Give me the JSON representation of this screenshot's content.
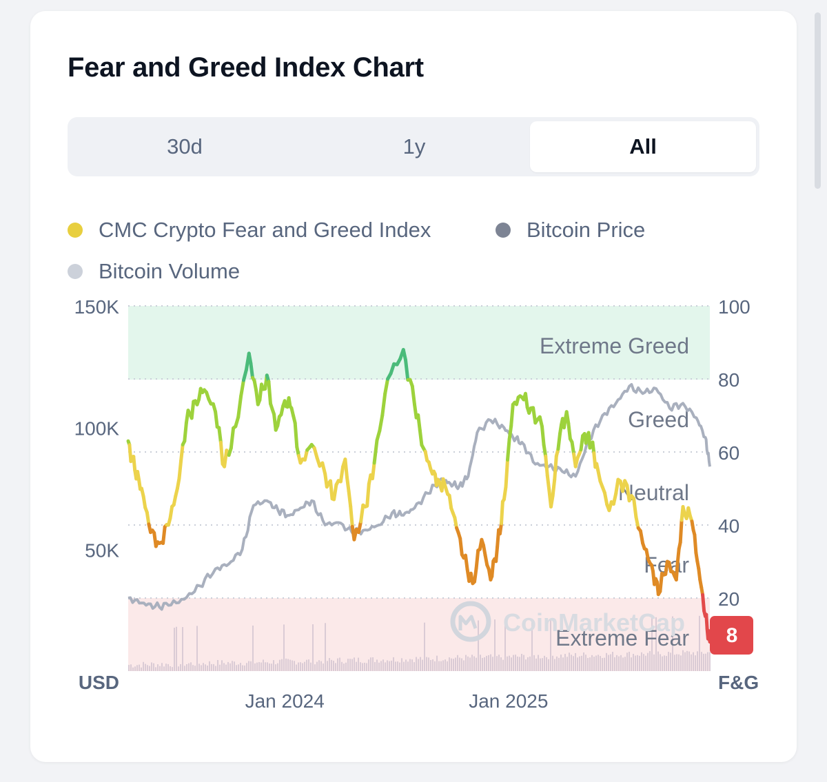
{
  "header": {
    "title": "Fear and Greed Index Chart"
  },
  "tabs": [
    {
      "label": "30d",
      "active": false
    },
    {
      "label": "1y",
      "active": false
    },
    {
      "label": "All",
      "active": true
    }
  ],
  "legend": [
    {
      "label": "CMC Crypto Fear and Greed Index",
      "color": "#e8cf3f"
    },
    {
      "label": "Bitcoin Price",
      "color": "#7d8494"
    },
    {
      "label": "Bitcoin Volume",
      "color": "#ccd1da"
    }
  ],
  "watermark": "CoinMarketCap",
  "current_value": "8",
  "chart_data": {
    "type": "line",
    "title": "Fear and Greed Index Chart",
    "xlabel": "",
    "x_tick_labels": [
      {
        "label": "Jan 2024",
        "date": 2024.0
      },
      {
        "label": "Jan 2025",
        "date": 2025.0
      }
    ],
    "xlim": [
      2023.3,
      2025.9
    ],
    "left_axis": {
      "unit_label": "USD",
      "ticks": [
        "150K",
        "100K",
        "50K"
      ],
      "tick_values": [
        150000,
        100000,
        50000
      ],
      "ylim": [
        0,
        150000
      ]
    },
    "right_axis": {
      "unit_label": "F&G",
      "ticks": [
        "100",
        "80",
        "60",
        "40",
        "20"
      ],
      "tick_values": [
        100,
        80,
        60,
        40,
        20
      ],
      "ylim": [
        0,
        100
      ]
    },
    "zones": [
      {
        "name": "Extreme Greed",
        "from": 80,
        "to": 100,
        "color": "#e3f6ec"
      },
      {
        "name": "Greed",
        "from": 60,
        "to": 80
      },
      {
        "name": "Neutral",
        "from": 40,
        "to": 60
      },
      {
        "name": "Fear",
        "from": 20,
        "to": 40
      },
      {
        "name": "Extreme Fear",
        "from": 0,
        "to": 20,
        "color": "#fbe9e9"
      }
    ],
    "series": [
      {
        "name": "CMC Crypto Fear and Greed Index",
        "axis": "right",
        "colors": {
          "extreme_fear": "#e24a4a",
          "fear": "#df8a25",
          "neutral": "#ecd34c",
          "greed": "#9dd23c",
          "extreme_greed": "#4bbb7a"
        },
        "x": [
          2023.3,
          2023.33,
          2023.36,
          2023.4,
          2023.44,
          2023.48,
          2023.52,
          2023.56,
          2023.6,
          2023.64,
          2023.69,
          2023.73,
          2023.78,
          2023.84,
          2023.88,
          2023.92,
          2023.96,
          2024.0,
          2024.03,
          2024.07,
          2024.12,
          2024.18,
          2024.22,
          2024.27,
          2024.31,
          2024.36,
          2024.4,
          2024.46,
          2024.53,
          2024.58,
          2024.62,
          2024.66,
          2024.69,
          2024.72,
          2024.76,
          2024.8,
          2024.84,
          2024.88,
          2024.92,
          2024.95,
          2024.98,
          2025.02,
          2025.06,
          2025.1,
          2025.15,
          2025.19,
          2025.23,
          2025.26,
          2025.3,
          2025.34,
          2025.37,
          2025.4,
          2025.45,
          2025.5,
          2025.55,
          2025.6,
          2025.64,
          2025.67,
          2025.71,
          2025.75,
          2025.78,
          2025.82,
          2025.85,
          2025.88,
          2025.9
        ],
        "y": [
          63,
          55,
          50,
          38,
          35,
          40,
          50,
          68,
          74,
          77,
          71,
          56,
          67,
          87,
          73,
          81,
          66,
          74,
          72,
          57,
          62,
          54,
          47,
          58,
          36,
          45,
          57,
          80,
          88,
          73,
          61,
          54,
          52,
          50,
          42,
          31,
          24,
          36,
          25,
          34,
          47,
          73,
          75,
          72,
          67,
          45,
          65,
          71,
          56,
          65,
          62,
          55,
          44,
          52,
          48,
          35,
          29,
          21,
          30,
          25,
          45,
          41,
          28,
          15,
          8
        ]
      },
      {
        "name": "Bitcoin Price",
        "axis": "left",
        "color": "#a9b0be",
        "x": [
          2023.3,
          2023.36,
          2023.42,
          2023.48,
          2023.55,
          2023.62,
          2023.69,
          2023.75,
          2023.81,
          2023.86,
          2023.92,
          2023.97,
          2024.02,
          2024.07,
          2024.12,
          2024.18,
          2024.24,
          2024.3,
          2024.36,
          2024.42,
          2024.48,
          2024.53,
          2024.58,
          2024.64,
          2024.7,
          2024.74,
          2024.78,
          2024.82,
          2024.86,
          2024.92,
          2024.98,
          2025.02,
          2025.06,
          2025.12,
          2025.18,
          2025.24,
          2025.3,
          2025.36,
          2025.42,
          2025.48,
          2025.54,
          2025.6,
          2025.66,
          2025.72,
          2025.78,
          2025.84,
          2025.88,
          2025.9
        ],
        "y": [
          30000,
          28000,
          26500,
          27000,
          29500,
          35000,
          42000,
          44000,
          50000,
          68000,
          70000,
          66000,
          64000,
          67000,
          70000,
          60000,
          61000,
          57000,
          58000,
          60000,
          65000,
          64000,
          67000,
          73000,
          79000,
          77000,
          76000,
          80000,
          98000,
          103000,
          100000,
          96000,
          94000,
          85000,
          84000,
          82000,
          80000,
          95000,
          105000,
          110000,
          117000,
          114000,
          116000,
          108000,
          110000,
          104000,
          96000,
          84000
        ]
      },
      {
        "name": "Bitcoin Volume",
        "axis": "left",
        "color": "#d4c6d1",
        "description_only": false
      }
    ]
  }
}
